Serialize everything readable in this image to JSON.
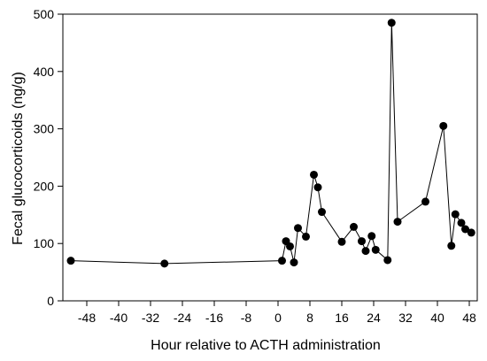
{
  "chart_data": {
    "type": "line",
    "xlabel": "Hour relative to ACTH administration",
    "ylabel": "Fecal glucocorticoids (ng/g)",
    "xlim": [
      -54,
      50
    ],
    "ylim": [
      0,
      500
    ],
    "xticks": [
      -48,
      -40,
      -32,
      -24,
      -16,
      -8,
      0,
      8,
      16,
      24,
      32,
      40,
      48
    ],
    "yticks": [
      0,
      100,
      200,
      300,
      400,
      500
    ],
    "grid": false,
    "markers": "filled-circle",
    "line_color": "#000000",
    "marker_color": "#000000",
    "series": [
      {
        "points": [
          {
            "x": -52,
            "y": 70
          },
          {
            "x": -28.5,
            "y": 65
          },
          {
            "x": 1,
            "y": 70
          },
          {
            "x": 2,
            "y": 104
          },
          {
            "x": 3,
            "y": 95
          },
          {
            "x": 4,
            "y": 67
          },
          {
            "x": 5,
            "y": 127
          },
          {
            "x": 7,
            "y": 112
          },
          {
            "x": 9,
            "y": 220
          },
          {
            "x": 10,
            "y": 198
          },
          {
            "x": 11,
            "y": 155
          },
          {
            "x": 16,
            "y": 103
          },
          {
            "x": 19,
            "y": 129
          },
          {
            "x": 21,
            "y": 104
          },
          {
            "x": 22,
            "y": 87
          },
          {
            "x": 23.5,
            "y": 113
          },
          {
            "x": 24.5,
            "y": 89
          },
          {
            "x": 27.5,
            "y": 71
          },
          {
            "x": 28.5,
            "y": 485
          },
          {
            "x": 30,
            "y": 138
          },
          {
            "x": 37,
            "y": 173
          },
          {
            "x": 41.5,
            "y": 305
          },
          {
            "x": 43.5,
            "y": 96
          },
          {
            "x": 44.5,
            "y": 151
          },
          {
            "x": 46,
            "y": 136
          },
          {
            "x": 47,
            "y": 125
          },
          {
            "x": 48.5,
            "y": 119
          }
        ]
      }
    ]
  }
}
